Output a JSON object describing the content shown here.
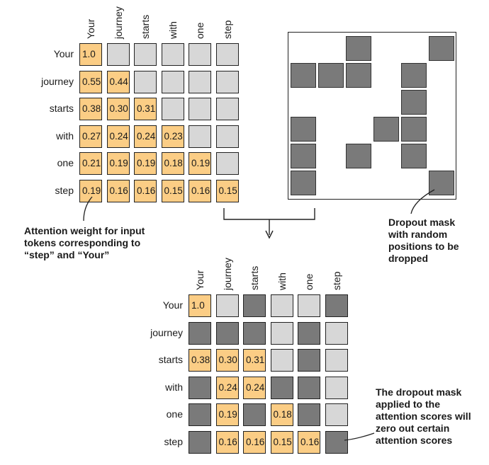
{
  "tokens": [
    "Your",
    "journey",
    "starts",
    "with",
    "one",
    "step"
  ],
  "attention_weights": {
    "rows": [
      [
        "1.0",
        "",
        "",
        "",
        "",
        ""
      ],
      [
        "0.55",
        "0.44",
        "",
        "",
        "",
        ""
      ],
      [
        "0.38",
        "0.30",
        "0.31",
        "",
        "",
        ""
      ],
      [
        "0.27",
        "0.24",
        "0.24",
        "0.23",
        "",
        ""
      ],
      [
        "0.21",
        "0.19",
        "0.19",
        "0.18",
        "0.19",
        ""
      ],
      [
        "0.19",
        "0.16",
        "0.16",
        "0.15",
        "0.16",
        "0.15"
      ]
    ]
  },
  "dropout_mask": {
    "dropped": [
      [
        0,
        2
      ],
      [
        0,
        5
      ],
      [
        1,
        0
      ],
      [
        1,
        1
      ],
      [
        1,
        2
      ],
      [
        1,
        4
      ],
      [
        2,
        4
      ],
      [
        3,
        0
      ],
      [
        3,
        3
      ],
      [
        3,
        4
      ],
      [
        4,
        0
      ],
      [
        4,
        2
      ],
      [
        4,
        4
      ],
      [
        5,
        0
      ],
      [
        5,
        5
      ]
    ]
  },
  "masked_weights": {
    "rows": [
      [
        "1.0",
        "",
        "",
        "",
        "",
        ""
      ],
      [
        "",
        "",
        "",
        "",
        "",
        ""
      ],
      [
        "0.38",
        "0.30",
        "0.31",
        "",
        "",
        ""
      ],
      [
        "",
        "0.24",
        "0.24",
        "",
        "",
        ""
      ],
      [
        "",
        "0.19",
        "",
        "0.18",
        "",
        ""
      ],
      [
        "",
        "0.16",
        "0.16",
        "0.15",
        "0.16",
        ""
      ]
    ],
    "cell_states": [
      [
        "orange",
        "light",
        "dark",
        "light",
        "light",
        "dark"
      ],
      [
        "dark",
        "dark",
        "dark",
        "light",
        "dark",
        "light"
      ],
      [
        "orange",
        "orange",
        "orange",
        "light",
        "dark",
        "light"
      ],
      [
        "dark",
        "orange",
        "orange",
        "dark",
        "dark",
        "light"
      ],
      [
        "dark",
        "orange",
        "dark",
        "orange",
        "dark",
        "light"
      ],
      [
        "dark",
        "orange",
        "orange",
        "orange",
        "orange",
        "dark"
      ]
    ]
  },
  "annotations": {
    "attention_weight": "Attention weight for input\ntokens corresponding to\n“step” and “Your”",
    "dropout_mask": "Dropout mask\nwith random\npositions to be\ndropped",
    "applied": "The dropout mask\napplied to the\nattention scores will\nzero out certain\nattention scores"
  },
  "colors": {
    "weight_cell": "#fbcd85",
    "masked_light": "#d7d7d7",
    "dropped_dark": "#7a7a7a"
  }
}
